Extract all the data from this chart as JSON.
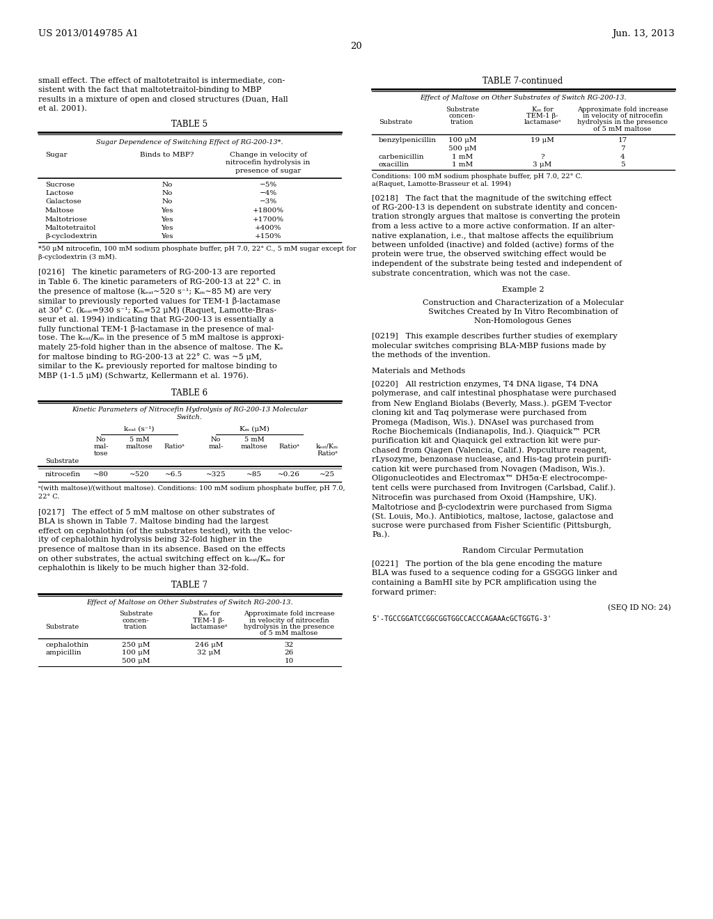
{
  "header_left": "US 2013/0149785 A1",
  "header_right": "Jun. 13, 2013",
  "page_num": "20",
  "left_intro_text": "small effect. The effect of maltotetraitol is intermediate, consistent with the fact that maltotetraitol-binding to MBP results in a mixture of open and closed structures (Duan, Hall et al. 2001).",
  "table5_title": "TABLE 5",
  "table5_subtitle": "Sugar Dependence of Switching Effect of RG-200-13*.",
  "table5_col1_header": "Sugar",
  "table5_col2_header": "Binds to MBP?",
  "table5_col3_header": "Change in velocity of\nnitrocefin hydrolysis in\npresence of sugar",
  "table5_rows": [
    [
      "Sucrose",
      "No",
      "−5%"
    ],
    [
      "Lactose",
      "No",
      "−4%"
    ],
    [
      "Galactose",
      "No",
      "−3%"
    ],
    [
      "Maltose",
      "Yes",
      "+1800%"
    ],
    [
      "Maltotriose",
      "Yes",
      "+1700%"
    ],
    [
      "Maltotetraitol",
      "Yes",
      "+400%"
    ],
    [
      "β-cyclodextrin",
      "Yes",
      "+150%"
    ]
  ],
  "table5_footnote": "*50 μM nitrocefin, 100 mM sodium phosphate buffer, pH 7.0, 22° C., 5 mM sugar except for β-cyclodextrin (3 mM).",
  "para216_text": "[0216]   The kinetic parameters of RG-200-13 are reported in Table 6. The kinetic parameters of RG-200-13 at 22° C. in the presence of maltose (k_cat∼520 s⁻¹; K_m∼85 M) are very similar to previously reported values for TEM-1 β-lactamase at 30° C. (k_cat=930 s⁻¹; K_m=52 μM) (Raquet, Lamotte-Brasseur et al. 1994) indicating that RG-200-13 is essentially a fully functional TEM-1 β-lactamase in the presence of maltose. The k_cat/K_m in the presence of 5 mM maltose is approximately 25-fold higher than in the absence of maltose. The K_d for maltose binding to RG-200-13 at 22° C. was ~5 μM, similar to the K_d previously reported for maltose binding to MBP (1-1.5 μM) (Schwartz, Kellermann et al. 1976).",
  "table6_title": "TABLE 6",
  "table6_subtitle": "Kinetic Parameters of Nitrocefin Hydrolysis of RG-200-13 Molecular Switch.",
  "table6_row": [
    "nitrocefin",
    "~80",
    "~520",
    "~6.5",
    "~325",
    "~85",
    "~0.26",
    "~25"
  ],
  "table6_footnote": "a(with maltose)/(without maltose). Conditions: 100 mM sodium phosphate buffer, pH 7.0, 22° C.",
  "para217_text": "[0217]   The effect of 5 mM maltose on other substrates of BLA is shown in Table 7. Maltose binding had the largest effect on cephalothin (of the substrates tested), with the velocity of cephalothin hydrolysis being 32-fold higher in the presence of maltose than in its absence. Based on the effects on other substrates, the actual switching effect on k_cat/K_m for cephalothin is likely to be much higher than 32-fold.",
  "table7_title": "TABLE 7",
  "table7_subtitle": "Effect of Maltose on Other Substrates of Switch RG-200-13.",
  "table7_rows": [
    [
      "cephalothin",
      "250 μM",
      "246 μM",
      "32"
    ],
    [
      "ampicillin",
      "100 μM",
      "32 μM",
      "26"
    ],
    [
      "",
      "500 μM",
      "",
      "10"
    ]
  ],
  "table7c_title": "TABLE 7-continued",
  "table7c_subtitle": "Effect of Maltose on Other Substrates of Switch RG-200-13.",
  "table7c_rows": [
    [
      "benzylpenicillin",
      "100 μM",
      "19 μM",
      "17"
    ],
    [
      "",
      "500 μM",
      "",
      "7"
    ],
    [
      "carbenicillin",
      "1 mM",
      "?",
      "4"
    ],
    [
      "oxacillin",
      "1 mM",
      "3 μM",
      "5"
    ]
  ],
  "table7c_footnote1": "Conditions: 100 mM sodium phosphate buffer, pH 7.0, 22° C.",
  "table7c_footnote2": "a(Raquet, Lamotte-Brasseur et al. 1994)",
  "para218_text": "[0218]   The fact that the magnitude of the switching effect of RG-200-13 is dependent on substrate identity and concentration strongly argues that maltose is converting the protein from a less active to a more active conformation. If an alternative explanation, i.e., that maltose affects the equilibrium between unfolded (inactive) and folded (active) forms of the protein were true, the observed switching effect would be independent of the substrate being tested and independent of substrate concentration, which was not the case.",
  "example2_title": "Example 2",
  "example2_subtitle": "Construction and Characterization of a Molecular\nSwitches Created by In Vitro Recombination of\nNon-Homologous Genes",
  "para219_text": "[0219]   This example describes further studies of exemplary molecular switches comprising BLA-MBP fusions made by the methods of the invention.",
  "materials_title": "Materials and Methods",
  "para220_text": "[0220]   All restriction enzymes, T4 DNA ligase, T4 DNA polymerase, and calf intestinal phosphatase were purchased from New England Biolabs (Beverly, Mass.). pGEM T-vector cloning kit and Taq polymerase were purchased from Promega (Madison, Wis.). DNAseI was purchased from Roche Biochemicals (Indianapolis, Ind.). Qiaquick™ PCR purification kit and Qiaquick gel extraction kit were purchased from Qiagen (Valencia, Calif.). Popculture reagent, rLysozyme, benzonase nuclease, and His-tag protein purification kit were purchased from Novagen (Madison, Wis.). Oligonucleotides and Electromax™ DH5α-E electrocompetent cells were purchased from Invitrogen (Carlsbad, Calif.). Nitrocefin was purchased from Oxoid (Hampshire, UK). Maltotriose and β-cyclodextrin were purchased from Sigma (St. Louis, Mo.). Antibiotics, maltose, lactose, galactose and sucrose were purchased from Fisher Scientific (Pittsburgh, Pa.).",
  "rcp_title": "Random Circular Permutation",
  "para221_text": "[0221]   The portion of the bla gene encoding the mature BLA was fused to a sequence coding for a GSGGG linker and containing a BamHI site by PCR amplification using the forward primer:",
  "seq_id": "(SEQ ID NO: 24)",
  "seq_primer": "5'-TGCCGGATCCGGCGGTGGCCACCCAGAAAcGCTGGTG-3'"
}
